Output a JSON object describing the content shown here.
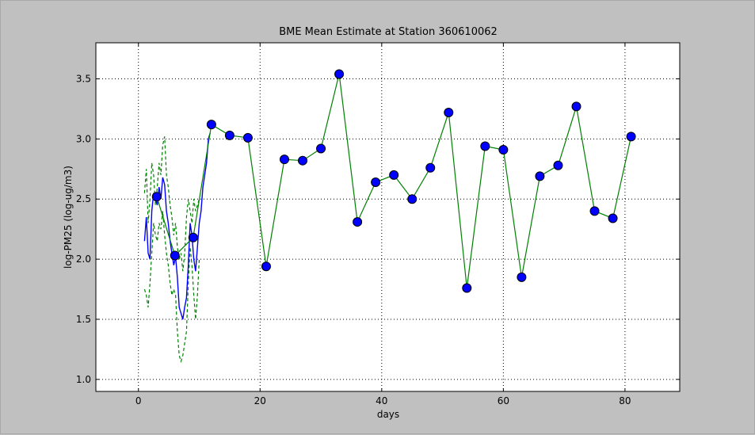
{
  "chart_data": {
    "type": "line",
    "title": "BME Mean Estimate at Station 360610062",
    "xlabel": "days",
    "ylabel": "log-PM25 (log-ug/m3)",
    "xlim": [
      -7,
      89
    ],
    "ylim": [
      0.9,
      3.8
    ],
    "xticks": [
      0,
      20,
      40,
      60,
      80
    ],
    "yticks": [
      1.0,
      1.5,
      2.0,
      2.5,
      3.0,
      3.5
    ],
    "grid": true,
    "series": [
      {
        "style": "green-solid-line-with-blue-markers",
        "color": "#008000",
        "marker_color": "#0000ff",
        "x": [
          3,
          6,
          9,
          12,
          15,
          18,
          21,
          24,
          27,
          30,
          33,
          36,
          39,
          42,
          45,
          48,
          51,
          54,
          57,
          60,
          63,
          66,
          69,
          72,
          75,
          78,
          81
        ],
        "y": [
          2.52,
          2.03,
          2.18,
          3.12,
          3.03,
          3.01,
          1.94,
          2.83,
          2.82,
          2.92,
          3.54,
          2.31,
          2.64,
          2.7,
          2.5,
          2.76,
          3.22,
          1.76,
          2.94,
          2.91,
          1.85,
          2.69,
          2.78,
          3.27,
          2.4,
          2.34,
          3.02
        ]
      },
      {
        "style": "blue-solid-line",
        "color": "#0000ff",
        "x": [
          1.0,
          1.3,
          1.6,
          1.9,
          2.2,
          2.5,
          2.8,
          3.1,
          3.4,
          3.7,
          4.0,
          4.3,
          4.6,
          4.9,
          5.2,
          5.5,
          5.8,
          6.1,
          6.4,
          6.7,
          7.0,
          7.3,
          7.6,
          7.9,
          8.2,
          8.5,
          8.8,
          9.1,
          9.4,
          9.7,
          10.0,
          10.3,
          10.6,
          10.9,
          11.2,
          11.5,
          11.8
        ],
        "y": [
          2.15,
          2.35,
          2.05,
          2.0,
          2.4,
          2.55,
          2.5,
          2.45,
          2.6,
          2.5,
          2.68,
          2.62,
          2.4,
          2.3,
          2.15,
          2.05,
          1.95,
          2.02,
          1.85,
          1.6,
          1.55,
          1.5,
          1.6,
          1.68,
          1.95,
          2.3,
          2.2,
          2.0,
          1.9,
          2.1,
          2.3,
          2.4,
          2.6,
          2.7,
          2.8,
          3.0,
          3.05
        ]
      },
      {
        "style": "green-dashed-upper",
        "color": "#008000",
        "x": [
          1.0,
          1.3,
          1.6,
          1.9,
          2.2,
          2.5,
          2.8,
          3.1,
          3.4,
          3.7,
          4.0,
          4.3,
          4.6,
          4.9,
          5.2,
          5.5,
          5.8,
          6.1,
          6.4,
          6.7,
          7.0,
          7.3,
          7.6,
          7.9,
          8.2,
          8.5,
          8.8,
          9.1,
          9.4,
          9.7,
          10.0
        ],
        "y": [
          2.55,
          2.75,
          2.3,
          2.5,
          2.8,
          2.7,
          2.45,
          2.6,
          2.8,
          2.7,
          2.95,
          3.02,
          2.7,
          2.6,
          2.45,
          2.35,
          2.2,
          2.3,
          2.1,
          2.0,
          2.05,
          1.9,
          2.05,
          2.35,
          2.5,
          2.4,
          2.3,
          2.5,
          2.4,
          2.45,
          2.5
        ]
      },
      {
        "style": "green-dashed-lower",
        "color": "#008000",
        "x": [
          1.0,
          1.3,
          1.6,
          1.9,
          2.2,
          2.5,
          2.8,
          3.1,
          3.4,
          3.7,
          4.0,
          4.3,
          4.6,
          4.9,
          5.2,
          5.5,
          5.8,
          6.1,
          6.4,
          6.7,
          7.0,
          7.3,
          7.6,
          7.9,
          8.2,
          8.5,
          8.8,
          9.1,
          9.4,
          9.7,
          10.0
        ],
        "y": [
          1.75,
          1.7,
          1.6,
          1.8,
          2.05,
          2.3,
          2.2,
          2.15,
          2.3,
          2.25,
          2.4,
          2.2,
          2.05,
          1.95,
          1.8,
          1.7,
          1.75,
          1.7,
          1.4,
          1.2,
          1.15,
          1.2,
          1.3,
          1.4,
          1.8,
          2.1,
          1.95,
          1.7,
          1.5,
          1.7,
          2.0
        ]
      }
    ]
  }
}
